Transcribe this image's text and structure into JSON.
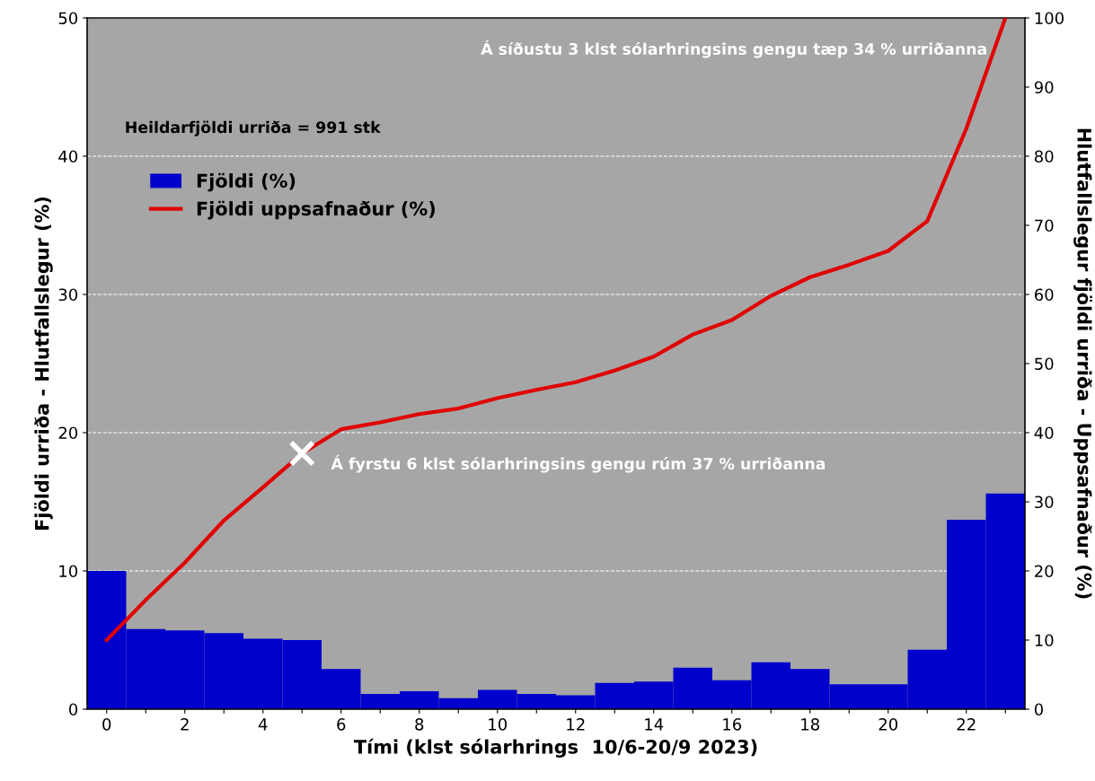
{
  "chart_data": {
    "type": "bar",
    "xlabel": "Tími (klst sólarhrings  10/6-20/9 2023)",
    "ylabel": "Fjöldi urriða - Hlutfallslegur (%)",
    "y2label": "Hlutfallslegur fjöldi urriða - Uppsafnaður (%)",
    "categories": [
      "0",
      null,
      "2",
      null,
      "4",
      null,
      "6",
      null,
      "8",
      null,
      "10",
      null,
      "12",
      null,
      "14",
      null,
      "16",
      null,
      "18",
      null,
      "20",
      null,
      "22",
      null
    ],
    "series": [
      {
        "name": "Fjöldi (%)",
        "color": "#0000cc",
        "values": [
          10.0,
          5.8,
          5.7,
          5.5,
          5.1,
          5.0,
          2.9,
          1.1,
          1.3,
          0.8,
          1.4,
          1.1,
          1.0,
          1.9,
          2.0,
          3.0,
          2.1,
          3.4,
          2.9,
          1.8,
          1.8,
          4.3,
          13.7,
          15.6
        ]
      },
      {
        "name": "Fjöldi uppsafnaður (%)",
        "type": "line",
        "axis": "y2",
        "color": "#e00000",
        "marker": "none",
        "line_style": "solid",
        "values": [
          10,
          15.8,
          21.2,
          27.3,
          32.1,
          37,
          40.5,
          41.5,
          42.7,
          43.5,
          45,
          46.2,
          47.3,
          49,
          51,
          54.2,
          56.3,
          59.8,
          62.5,
          64.3,
          66.3,
          70.6,
          84,
          100
        ]
      },
      {
        "type": "scatter",
        "axis": "y2",
        "color": "#ffffff",
        "marker": "cross",
        "values": [
          null,
          null,
          null,
          null,
          null,
          37,
          null,
          null,
          null,
          null,
          null,
          null,
          null,
          null,
          null,
          null,
          null,
          null,
          null,
          null,
          null,
          null,
          null,
          null
        ]
      }
    ],
    "ylim": [
      0,
      50
    ],
    "yticks": [
      0,
      10,
      20,
      30,
      40,
      50
    ],
    "y2lim": [
      0,
      100
    ],
    "y2ticks": [
      0,
      10,
      20,
      30,
      40,
      50,
      60,
      70,
      80,
      90,
      100
    ],
    "grid": "y",
    "legend": "top left",
    "annotations": [
      "Á síðustu 3 klst sólarhringsins gengu tæp 34 % urriðanna",
      "Heildarfjöldi urriða = 991 stk",
      "Á fyrstu 6 klst sólarhringsins gengu rúm 37 % urriðanna"
    ]
  }
}
